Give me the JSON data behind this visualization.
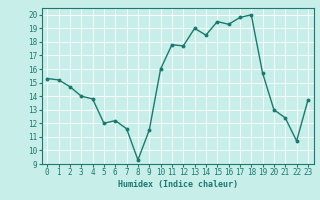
{
  "x": [
    0,
    1,
    2,
    3,
    4,
    5,
    6,
    7,
    8,
    9,
    10,
    11,
    12,
    13,
    14,
    15,
    16,
    17,
    18,
    19,
    20,
    21,
    22,
    23
  ],
  "y": [
    15.3,
    15.2,
    14.7,
    14.0,
    13.8,
    12.0,
    12.2,
    11.6,
    9.3,
    11.5,
    16.0,
    17.8,
    17.7,
    19.0,
    18.5,
    19.5,
    19.3,
    19.8,
    20.0,
    15.7,
    13.0,
    12.4,
    10.7,
    13.7
  ],
  "line_color": "#1a7a6e",
  "marker": "o",
  "markersize": 1.8,
  "linewidth": 1.0,
  "xlabel": "Humidex (Indice chaleur)",
  "ylim": [
    9,
    20.5
  ],
  "xlim": [
    -0.5,
    23.5
  ],
  "yticks": [
    9,
    10,
    11,
    12,
    13,
    14,
    15,
    16,
    17,
    18,
    19,
    20
  ],
  "xticks": [
    0,
    1,
    2,
    3,
    4,
    5,
    6,
    7,
    8,
    9,
    10,
    11,
    12,
    13,
    14,
    15,
    16,
    17,
    18,
    19,
    20,
    21,
    22,
    23
  ],
  "bg_color": "#c8eeea",
  "grid_color": "#ffffff",
  "tick_color": "#1a7a6e",
  "label_color": "#1a7a6e",
  "xlabel_fontsize": 6,
  "tick_fontsize": 5.5
}
